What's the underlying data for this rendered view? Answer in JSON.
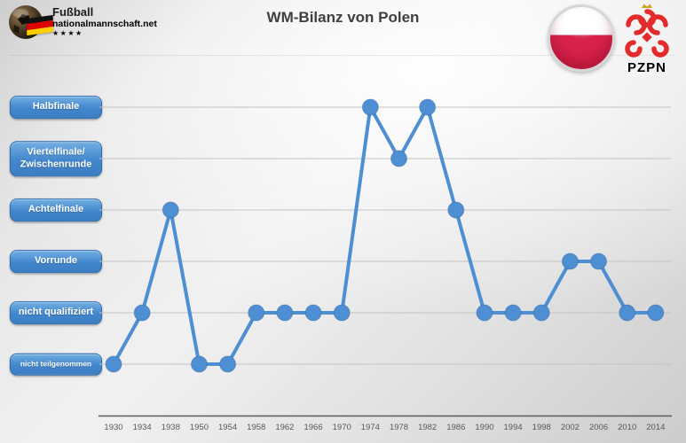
{
  "header": {
    "site_name": "Fußball",
    "site_domain": "nationalmannschaft.net",
    "stars": "★★★★",
    "title": "WM-Bilanz von Polen",
    "pzpn_label": "PZPN"
  },
  "y_axis": {
    "buttons": [
      {
        "label": "Halbfinale",
        "value": 5,
        "slug": "halbfinale",
        "small": false
      },
      {
        "label": "Viertelfinale/\nZwischenrunde",
        "value": 4,
        "slug": "viertelfinale-zwischenrunde",
        "small": false
      },
      {
        "label": "Achtelfinale",
        "value": 3,
        "slug": "achtelfinale",
        "small": false
      },
      {
        "label": "Vorrunde",
        "value": 2,
        "slug": "vorrunde",
        "small": false
      },
      {
        "label": "nicht qualifiziert",
        "value": 1,
        "slug": "nicht-qualifiziert",
        "small": false
      },
      {
        "label": "nicht teilgenommen",
        "value": 0,
        "slug": "nicht-teilgenommen",
        "small": true
      }
    ]
  },
  "chart_data": {
    "type": "line",
    "title": "WM-Bilanz von Polen",
    "categories": [
      "1930",
      "1934",
      "1938",
      "1950",
      "1954",
      "1958",
      "1962",
      "1966",
      "1970",
      "1974",
      "1978",
      "1982",
      "1986",
      "1990",
      "1994",
      "1998",
      "2002",
      "2006",
      "2010",
      "2014"
    ],
    "values": [
      0,
      1,
      3,
      0,
      0,
      1,
      1,
      1,
      1,
      5,
      4,
      5,
      3,
      1,
      1,
      1,
      2,
      2,
      1,
      1
    ],
    "y_levels": [
      "nicht teilgenommen",
      "nicht qualifiziert",
      "Vorrunde",
      "Achtelfinale",
      "Viertelfinale/Zwischenrunde",
      "Halbfinale"
    ],
    "value_meaning": {
      "0": "nicht teilgenommen",
      "1": "nicht qualifiziert",
      "2": "Vorrunde",
      "3": "Achtelfinale",
      "4": "Viertelfinale/Zwischenrunde",
      "5": "Halbfinale"
    },
    "series_color": "#4d8fd2",
    "marker": "circle",
    "grid": true,
    "legend": "none",
    "xlabel": "",
    "ylabel": "",
    "ylim": [
      0,
      5
    ]
  },
  "colors": {
    "accent_blue": "#4d8fd2",
    "button_border": "#2a6bae",
    "gridline": "#c3c3c3",
    "axis": "#5a5a5a",
    "tick_label": "#595959",
    "brand_red": "#e30613",
    "gold": "#e8b923",
    "poland_red": "#d8224c",
    "eagle_red": "#e32b2b",
    "title_gray": "#3f3f3f"
  }
}
